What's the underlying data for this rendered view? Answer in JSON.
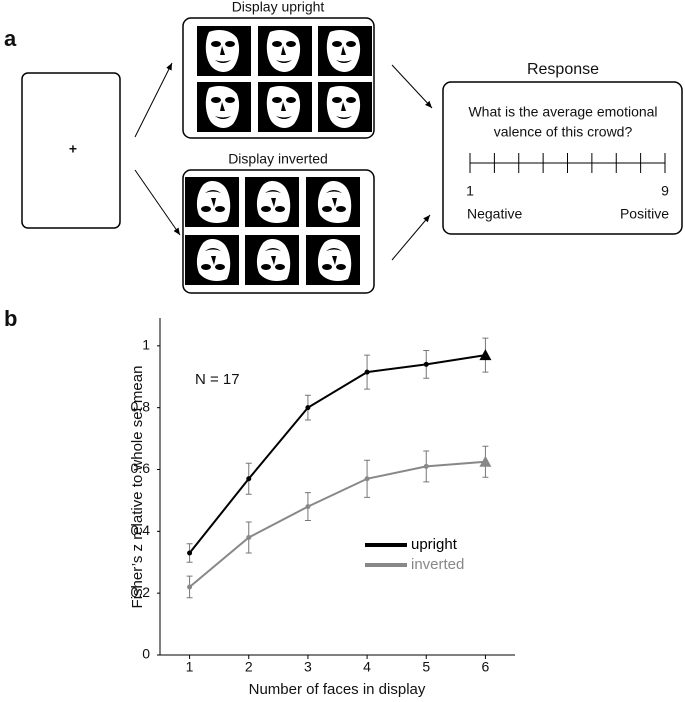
{
  "panel_a": {
    "label": "a",
    "fixation": "+",
    "upright_title": "Display upright",
    "inverted_title": "Display inverted",
    "response": {
      "title": "Response",
      "question": [
        "What is the average emotional",
        "valence of this crowd?"
      ],
      "scale_min": "1",
      "scale_max": "9",
      "min_label": "Negative",
      "max_label": "Positive"
    }
  },
  "panel_b_label": "b",
  "chart_data": {
    "type": "line",
    "annotation": "N = 17",
    "xlabel": "Number of faces in display",
    "ylabel": "Fisher’s z relative to whole set mean",
    "x": [
      1,
      2,
      3,
      4,
      5,
      6
    ],
    "xlim": [
      0.5,
      6.5
    ],
    "xticks": [
      1,
      2,
      3,
      4,
      5,
      6
    ],
    "ylim": [
      0,
      1.09
    ],
    "yticks": [
      0,
      0.2,
      0.4,
      0.6,
      0.8,
      1
    ],
    "legend": "lower right",
    "last_marker": "triangle",
    "series": [
      {
        "name": "upright",
        "color": "#000000",
        "values": [
          0.33,
          0.57,
          0.8,
          0.915,
          0.94,
          0.97
        ],
        "errors": [
          0.03,
          0.05,
          0.04,
          0.055,
          0.045,
          0.055
        ]
      },
      {
        "name": "inverted",
        "color": "#888888",
        "values": [
          0.22,
          0.38,
          0.48,
          0.57,
          0.61,
          0.625
        ],
        "errors": [
          0.035,
          0.05,
          0.045,
          0.06,
          0.05,
          0.05
        ]
      }
    ]
  }
}
